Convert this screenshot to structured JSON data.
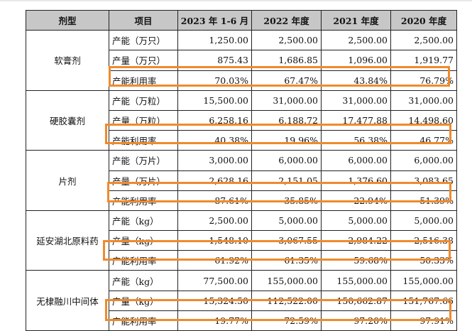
{
  "headers": [
    "剂型",
    "项目",
    "2023 年 1-6 月",
    "2022 年度",
    "2021 年度",
    "2020 年度"
  ],
  "groups": [
    {
      "type": "软膏剂",
      "rows": [
        {
          "item": "产能（万只）",
          "values": [
            "1,250.00",
            "2,500.00",
            "2,500.00",
            "2,500.00"
          ]
        },
        {
          "item": "产量（万只）",
          "values": [
            "875.43",
            "1,686.85",
            "1,096.00",
            "1,919.77"
          ]
        },
        {
          "item": "产能利用率",
          "values": [
            "70.03%",
            "67.47%",
            "43.84%",
            "76.79%"
          ]
        }
      ]
    },
    {
      "type": "硬胶囊剂",
      "rows": [
        {
          "item": "产能（万粒）",
          "values": [
            "15,500.00",
            "31,000.00",
            "31,000.00",
            "31,000.00"
          ]
        },
        {
          "item": "产量（万粒）",
          "values": [
            "6,258.16",
            "6,188.72",
            "17,477.88",
            "14,498.60"
          ]
        },
        {
          "item": "产能利用率",
          "values": [
            "40.38%",
            "19.96%",
            "56.38%",
            "46.77%"
          ]
        }
      ]
    },
    {
      "type": "片剂",
      "rows": [
        {
          "item": "产能（万片）",
          "values": [
            "3,000.00",
            "6,000.00",
            "6,000.00",
            "6,000.00"
          ]
        },
        {
          "item": "产量（万片）",
          "values": [
            "2,628.16",
            "2,151.05",
            "1,376.60",
            "3,083.65"
          ]
        },
        {
          "item": "产能利用率",
          "values": [
            "87.61%",
            "35.85%",
            "22.94%",
            "51.39%"
          ]
        }
      ]
    },
    {
      "type": "延安湖北原料药",
      "rows": [
        {
          "item": "产能（kg）",
          "values": [
            "2,500.00",
            "5,000.00",
            "5,000.00",
            "5,000.00"
          ]
        },
        {
          "item": "产量（kg）",
          "values": [
            "1,548.10",
            "3,067.55",
            "2,984.22",
            "2,516.38"
          ]
        },
        {
          "item": "产能利用率",
          "values": [
            "61.92%",
            "61.35%",
            "59.68%",
            "50.33%"
          ]
        }
      ]
    },
    {
      "type": "无棣融川中间体",
      "rows": [
        {
          "item": "产能（kg）",
          "values": [
            "77,500.00",
            "155,000.00",
            "155,000.00",
            "155,000.00"
          ]
        },
        {
          "item": "产量（kg）",
          "values": [
            "15,324.50",
            "112,522.00",
            "150,662.87",
            "151,767.66"
          ]
        },
        {
          "item": "产能利用率",
          "values": [
            "19.77%",
            "72.59%",
            "97.20%",
            "97.91%"
          ]
        }
      ]
    }
  ],
  "highlight_color": "#f08a2c",
  "header_bg": "#c7c7c7"
}
